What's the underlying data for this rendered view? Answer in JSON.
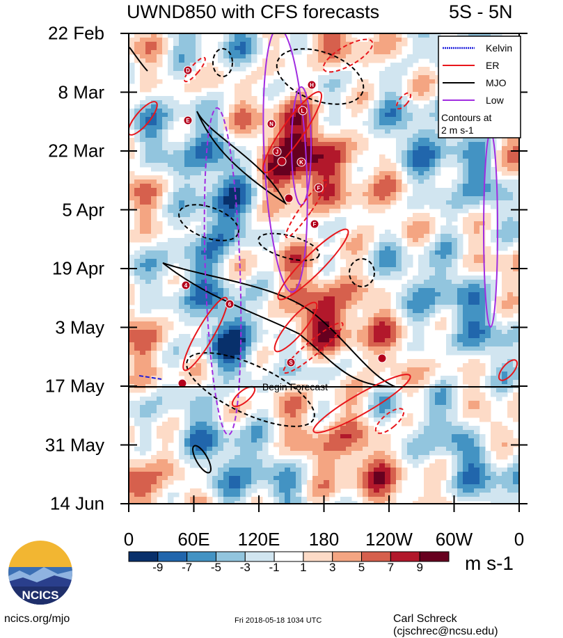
{
  "header": {
    "title": "UWND850 with CFS forecasts",
    "lat_band": "5S - 5N"
  },
  "chart_data": {
    "type": "heatmap",
    "title": "UWND850 with CFS forecasts",
    "subtitle": "5S - 5N",
    "y_ticks": [
      "22 Feb",
      "8 Mar",
      "22 Mar",
      "5 Apr",
      "19 Apr",
      "3 May",
      "17 May",
      "31 May",
      "14 Jun"
    ],
    "x_ticks": [
      "0",
      "60E",
      "120E",
      "180",
      "120W",
      "60W",
      "0"
    ],
    "colorbar": {
      "labels": [
        "-9",
        "-7",
        "-5",
        "-3",
        "-1",
        "1",
        "3",
        "5",
        "7",
        "9"
      ],
      "units": "m s-1",
      "colors": [
        "#08306b",
        "#2166ac",
        "#4393c3",
        "#92c5de",
        "#d1e5f0",
        "#ffffff",
        "#fddbc7",
        "#f4a582",
        "#d6604d",
        "#b2182b",
        "#67001f"
      ]
    },
    "legend": {
      "placement": "top-right",
      "entries": [
        {
          "name": "Kelvin",
          "color": "#1a1adb"
        },
        {
          "name": "ER",
          "color": "#e8161b"
        },
        {
          "name": "MJO",
          "color": "#000000"
        },
        {
          "name": "Low",
          "color": "#a02ce0"
        }
      ],
      "note_line1": "Contours at",
      "note_line2": "2 m s-1"
    },
    "annotation": "Begin Forecast",
    "storm_labels": [
      "D",
      "E",
      "H",
      "L",
      "N",
      "J",
      "K",
      "F",
      "F",
      "4",
      "6",
      "S"
    ]
  },
  "footer": {
    "left": "ncics.org/mjo",
    "timestamp": "Fri 2018-05-18 1034 UTC",
    "author": "Carl Schreck (cjschrec@ncsu.edu)"
  },
  "logo": {
    "text": "NCICS"
  }
}
